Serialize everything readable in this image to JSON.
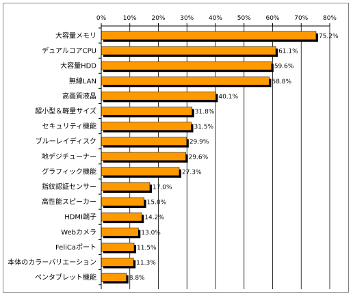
{
  "chart_data": {
    "type": "bar",
    "orientation": "horizontal",
    "categories": [
      "大容量メモリ",
      "デュアルコアCPU",
      "大容量HDD",
      "無線LAN",
      "高画質液晶",
      "超小型＆軽量サイズ",
      "セキュリティ機能",
      "ブルーレイディスク",
      "地デジチューナー",
      "グラフィック機能",
      "指紋認証センサー",
      "高性能スピーカー",
      "HDMI端子",
      "Webカメラ",
      "FeliCaポート",
      "本体のカラーバリエーション",
      "ペンタブレット機能"
    ],
    "values": [
      75.2,
      61.1,
      59.6,
      58.8,
      40.1,
      31.8,
      31.5,
      29.9,
      29.6,
      27.3,
      17.0,
      15.0,
      14.2,
      13.0,
      11.5,
      11.3,
      8.8
    ],
    "value_labels": [
      "75.2%",
      "61.1%",
      "59.6%",
      "58.8%",
      "40.1%",
      "31.8%",
      "31.5%",
      "29.9%",
      "29.6%",
      "27.3%",
      "17.0%",
      "15.0%",
      "14.2%",
      "13.0%",
      "11.5%",
      "11.3%",
      "8.8%"
    ],
    "x_ticks": [
      "0%",
      "10%",
      "20%",
      "30%",
      "40%",
      "50%",
      "60%",
      "70%",
      "80%"
    ],
    "xlim": [
      0,
      80
    ],
    "axis_position": "top",
    "grid": true,
    "title": "",
    "xlabel": "",
    "ylabel": "",
    "legend": "none",
    "colors": {
      "bar_fill": "#ff9900",
      "bar_shadow": "#000000",
      "bar_stroke": "#000000",
      "grid": "#000000",
      "axis": "#000000",
      "frame": "#7f7f7f"
    }
  }
}
